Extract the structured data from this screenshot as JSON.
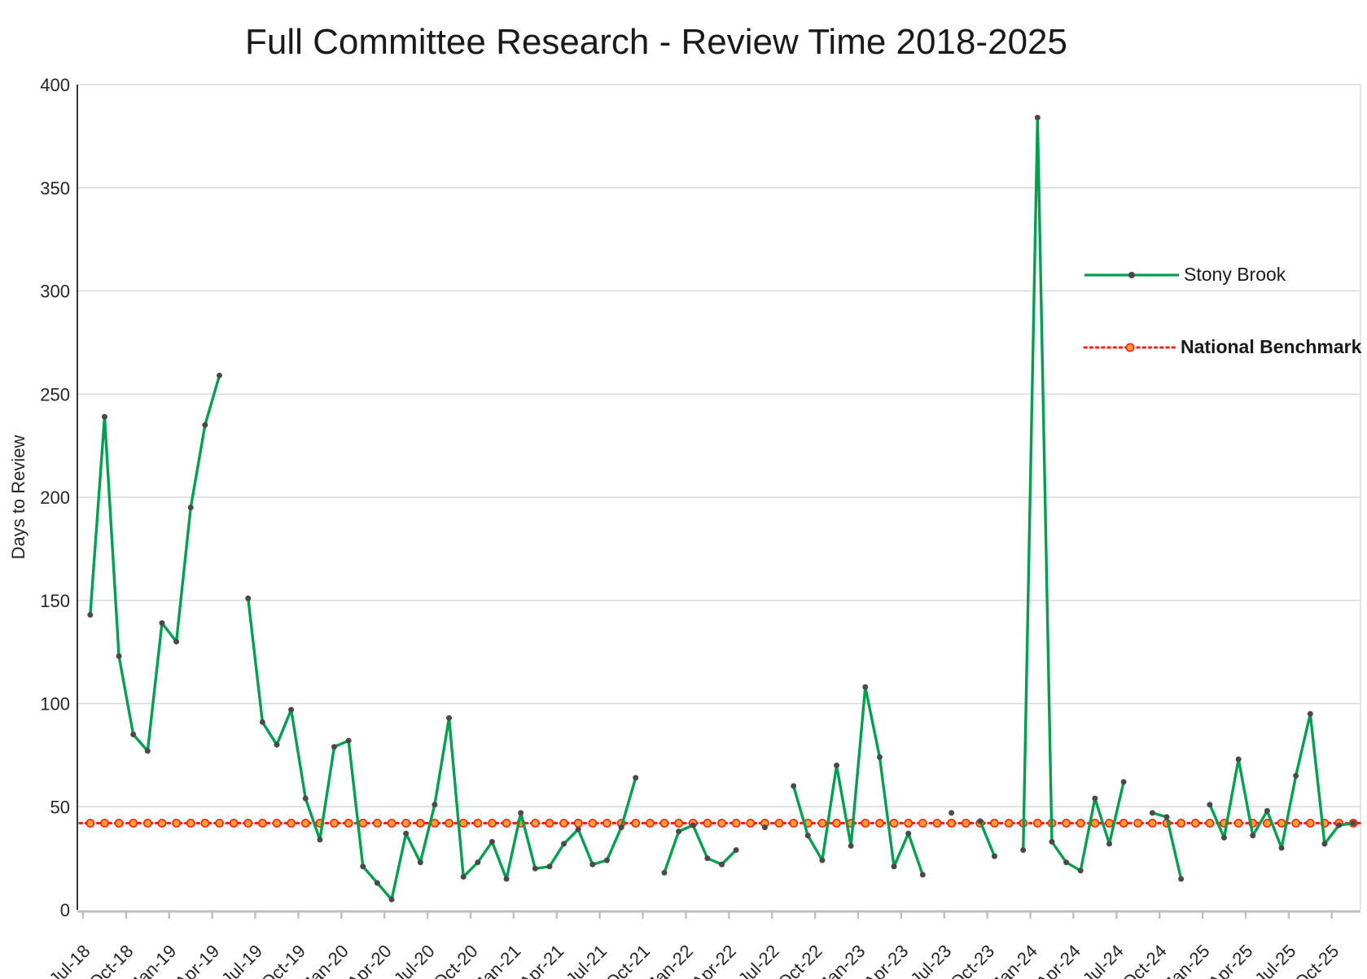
{
  "title": "Full Committee Research - Review Time 2018-2025",
  "y_axis": {
    "label": "Days to Review",
    "min": 0,
    "max": 400,
    "step": 50,
    "tick_labels": [
      "0",
      "50",
      "100",
      "150",
      "200",
      "250",
      "300",
      "350",
      "400"
    ]
  },
  "x_axis": {
    "tick_labels": [
      "Jul-18",
      "Oct-18",
      "Jan-19",
      "Apr-19",
      "Jul-19",
      "Oct-19",
      "Jan-20",
      "Apr-20",
      "Jul-20",
      "Oct-20",
      "Jan-21",
      "Apr-21",
      "Jul-21",
      "Oct-21",
      "Jan-22",
      "Apr-22",
      "Jul-22",
      "Oct-22",
      "Jan-23",
      "Apr-23",
      "Jul-23",
      "Oct-23",
      "Jan-24",
      "Apr-24",
      "Jul-24",
      "Oct-24",
      "Jan-25",
      "Apr-25",
      "Jul-25",
      "Oct-25"
    ]
  },
  "legend": [
    {
      "label": "Stony Brook",
      "bold": false
    },
    {
      "label": "National Benchmark",
      "bold": true
    }
  ],
  "colors": {
    "series_green": "#00A04E",
    "series_marker": "#4a4a4a",
    "benchmark_red": "#FF1F0F",
    "benchmark_marker_fill": "#FFA033",
    "gridline": "#D9D9D9",
    "axis_line_y": "#000000",
    "axis_line_x": "#BFBFBF",
    "text": "#262626"
  },
  "chart_data": {
    "type": "line",
    "title": "Full Committee Research - Review Time 2018-2025",
    "xlabel": "",
    "ylabel": "Days to Review",
    "ylim": [
      0,
      400
    ],
    "grid": "horizontal",
    "legend_position": "right-inside",
    "x": [
      "Jul-18",
      "Aug-18",
      "Sep-18",
      "Oct-18",
      "Nov-18",
      "Dec-18",
      "Jan-19",
      "Feb-19",
      "Mar-19",
      "Apr-19",
      "May-19",
      "Jun-19",
      "Jul-19",
      "Aug-19",
      "Sep-19",
      "Oct-19",
      "Nov-19",
      "Dec-19",
      "Jan-20",
      "Feb-20",
      "Mar-20",
      "Apr-20",
      "May-20",
      "Jun-20",
      "Jul-20",
      "Aug-20",
      "Sep-20",
      "Oct-20",
      "Nov-20",
      "Dec-20",
      "Jan-21",
      "Feb-21",
      "Mar-21",
      "Apr-21",
      "May-21",
      "Jun-21",
      "Jul-21",
      "Aug-21",
      "Sep-21",
      "Oct-21",
      "Nov-21",
      "Dec-21",
      "Jan-22",
      "Feb-22",
      "Mar-22",
      "Apr-22",
      "May-22",
      "Jun-22",
      "Jul-22",
      "Aug-22",
      "Sep-22",
      "Oct-22",
      "Nov-22",
      "Dec-22",
      "Jan-23",
      "Feb-23",
      "Mar-23",
      "Apr-23",
      "May-23",
      "Jun-23",
      "Jul-23",
      "Aug-23",
      "Sep-23",
      "Oct-23",
      "Nov-23",
      "Dec-23",
      "Jan-24",
      "Feb-24",
      "Mar-24",
      "Apr-24",
      "May-24",
      "Jun-24",
      "Jul-24",
      "Aug-24",
      "Sep-24",
      "Oct-24",
      "Nov-24",
      "Dec-24",
      "Jan-25",
      "Feb-25",
      "Mar-25",
      "Apr-25",
      "May-25",
      "Jun-25",
      "Jul-25",
      "Aug-25",
      "Sep-25",
      "Oct-25",
      "Nov-25"
    ],
    "series": [
      {
        "name": "Stony Brook",
        "values": [
          143,
          239,
          123,
          85,
          77,
          139,
          130,
          195,
          235,
          259,
          null,
          151,
          91,
          80,
          97,
          54,
          34,
          79,
          82,
          21,
          13,
          5,
          37,
          23,
          51,
          93,
          16,
          23,
          33,
          15,
          47,
          20,
          21,
          32,
          39,
          22,
          24,
          40,
          64,
          null,
          18,
          38,
          41,
          25,
          22,
          29,
          null,
          40,
          null,
          60,
          36,
          24,
          70,
          31,
          108,
          74,
          21,
          37,
          17,
          null,
          47,
          null,
          43,
          26,
          null,
          29,
          384,
          33,
          23,
          19,
          54,
          32,
          62,
          null,
          47,
          45,
          15,
          null,
          51,
          35,
          73,
          36,
          48,
          30,
          65,
          95,
          32,
          41,
          42
        ]
      },
      {
        "name": "National Benchmark",
        "constant_value": 42
      }
    ]
  }
}
